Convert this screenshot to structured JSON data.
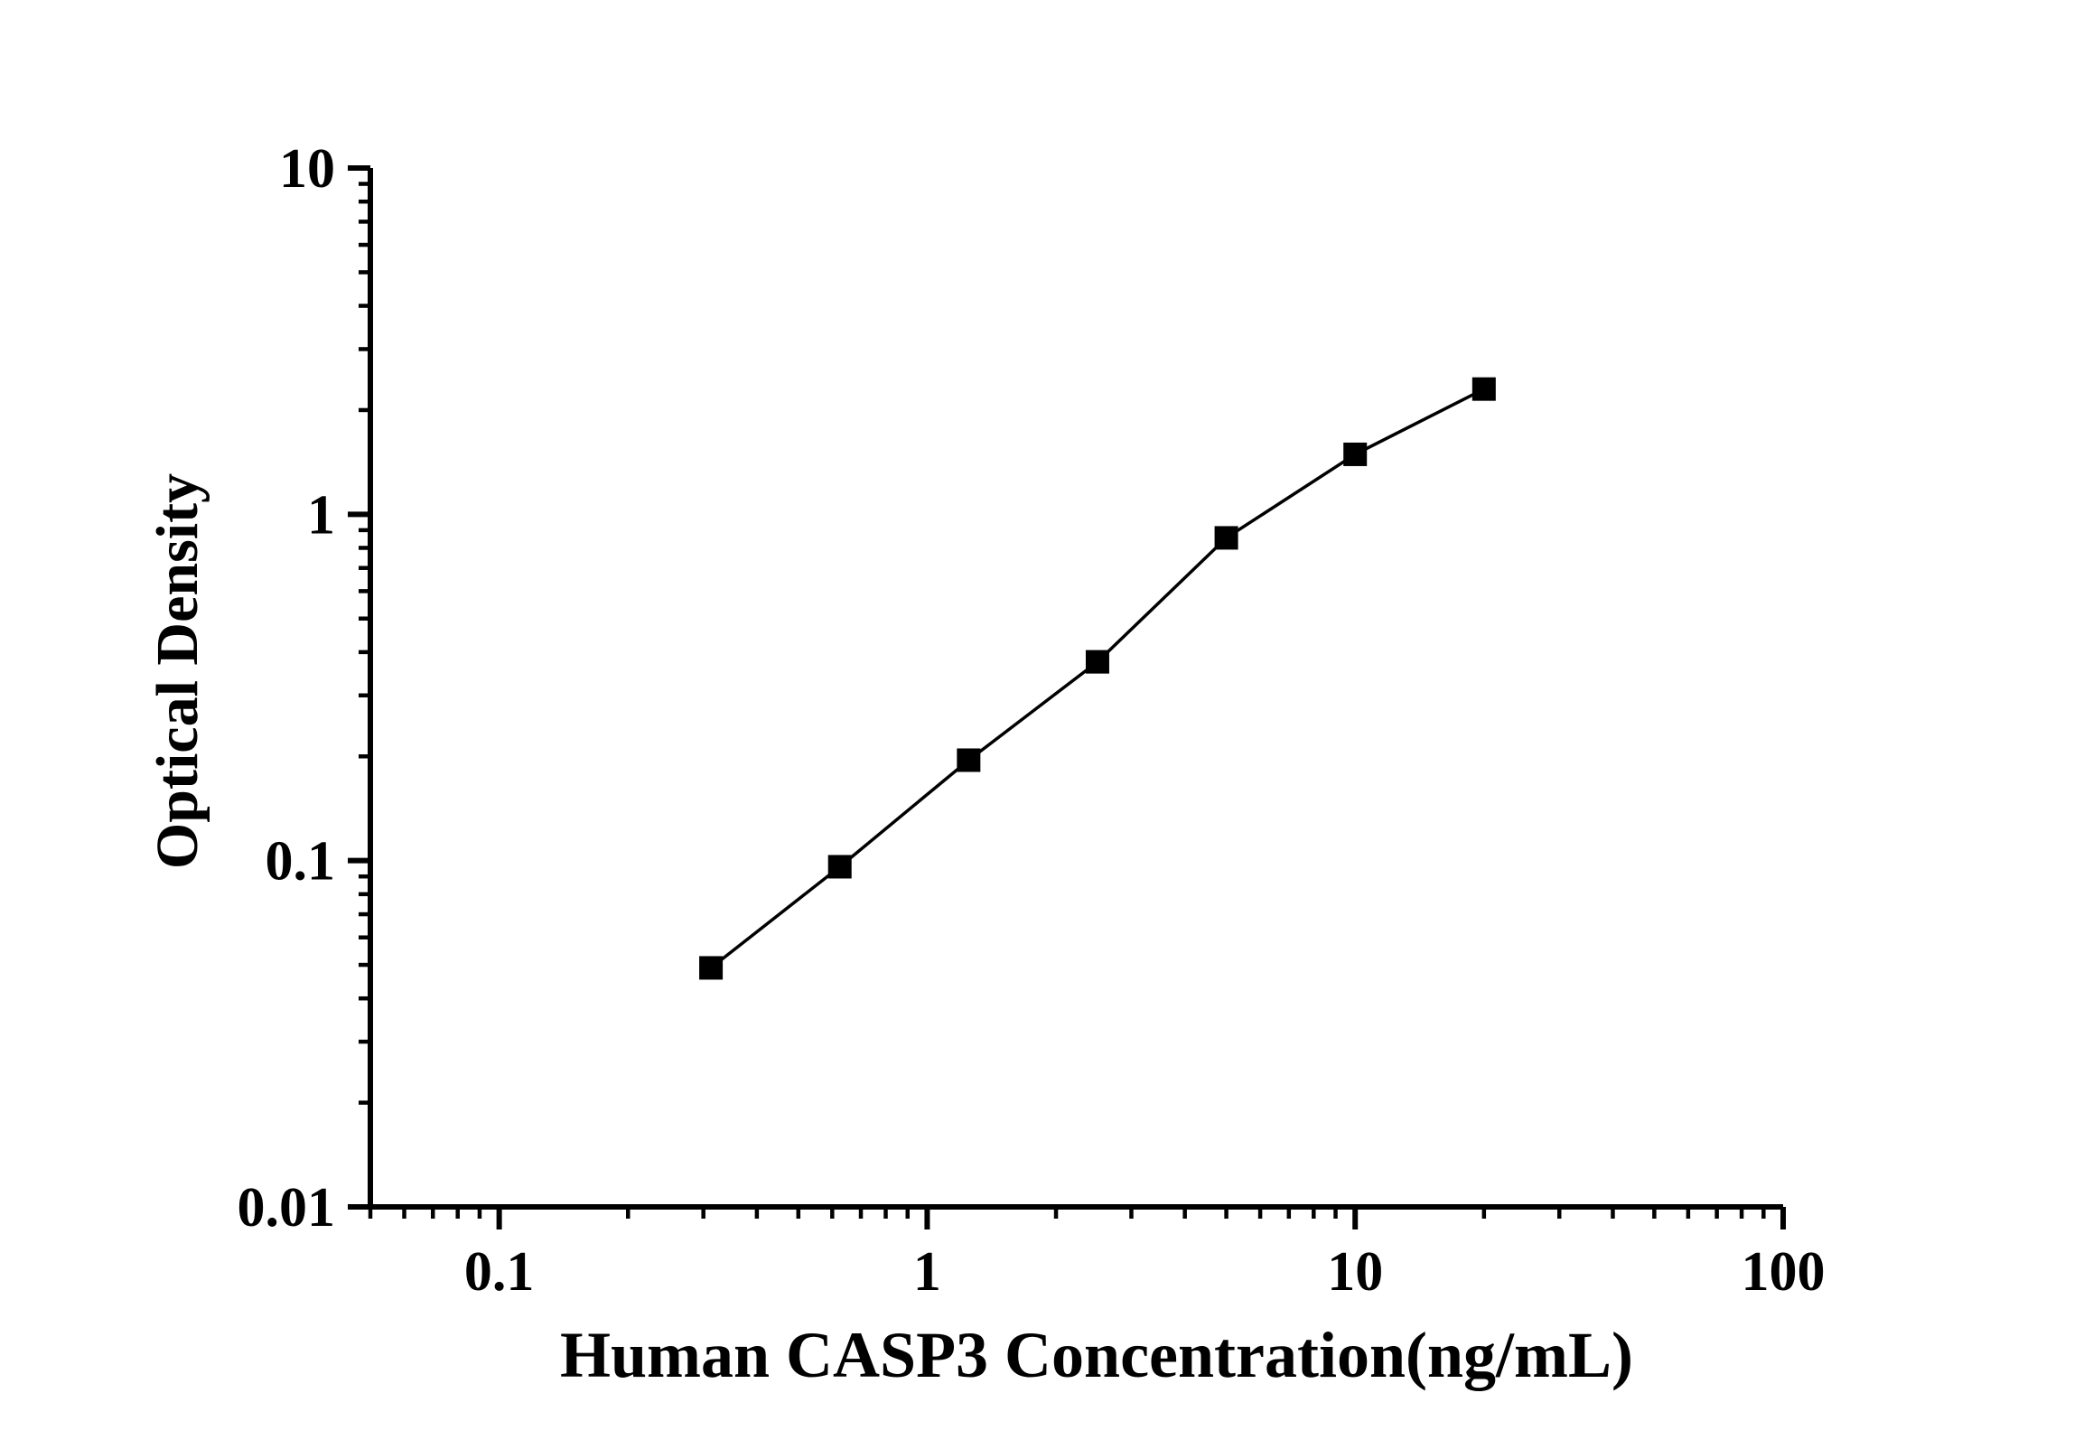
{
  "figure": {
    "background": "#ffffff",
    "axis_color": "#000000",
    "marker_color": "#000000",
    "line_color": "#000000"
  },
  "chart_data": {
    "type": "line",
    "title": "",
    "xlabel": "Human CASP3 Concentration(ng/mL)",
    "ylabel": "Optical Density",
    "xscale": "log",
    "yscale": "log",
    "xlim": [
      0.05,
      100
    ],
    "ylim": [
      0.01,
      10
    ],
    "grid": false,
    "legend": false,
    "x_major_ticks": [
      0.1,
      1,
      10,
      100
    ],
    "x_tick_labels": [
      "0.1",
      "1",
      "10",
      "100"
    ],
    "y_major_ticks": [
      0.01,
      0.1,
      1,
      10
    ],
    "y_tick_labels": [
      "0.01",
      "0.1",
      "1",
      "10"
    ],
    "series": [
      {
        "name": "standard-curve",
        "marker": "square",
        "color": "#000000",
        "x": [
          0.3125,
          0.625,
          1.25,
          2.5,
          5,
          10,
          20
        ],
        "y": [
          0.049,
          0.096,
          0.195,
          0.375,
          0.855,
          1.49,
          2.3
        ]
      }
    ]
  }
}
